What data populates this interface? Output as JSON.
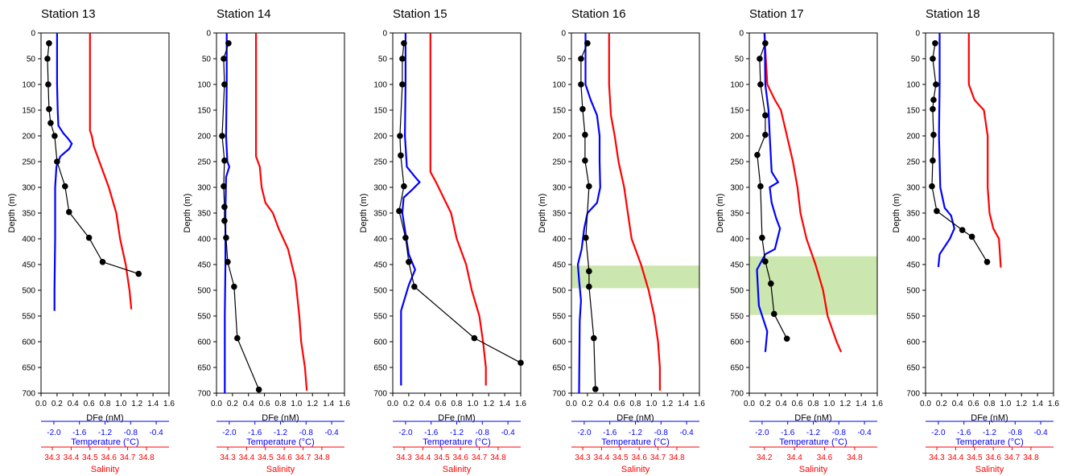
{
  "colors": {
    "dfe": "#000000",
    "temperature": "#0000ff",
    "salinity": "#ff0000",
    "highlight": "#c2e2a0",
    "axis": "#000000"
  },
  "axis_labels": {
    "y": "Depth (m)",
    "x_dfe": "DFe (nM)",
    "x_temperature": "Temperature (°C)",
    "x_salinity": "Salinity"
  },
  "chart_data": [
    {
      "title": "Station 13",
      "type": "line",
      "ylim": [
        0,
        700
      ],
      "yticks": [
        0,
        50,
        100,
        150,
        200,
        250,
        300,
        350,
        400,
        450,
        500,
        550,
        600,
        650,
        700
      ],
      "dfe_xlim": [
        0,
        1.6
      ],
      "dfe_ticks": [
        "0.0",
        "0.2",
        "0.4",
        "0.6",
        "0.8",
        "1.0",
        "1.2",
        "1.4",
        "1.6"
      ],
      "temp_xlim": [
        -2.2,
        -0.2
      ],
      "temp_ticks": [
        "-2.0",
        "-1.6",
        "-1.2",
        "-0.8",
        "-0.4"
      ],
      "sal_xlim": [
        34.24,
        34.92
      ],
      "sal_ticks": [
        "34.3",
        "34.4",
        "34.5",
        "34.6",
        "34.7",
        "34.8"
      ],
      "highlight": null,
      "dfe": [
        [
          0.1,
          20
        ],
        [
          0.08,
          50
        ],
        [
          0.09,
          100
        ],
        [
          0.1,
          148
        ],
        [
          0.12,
          175
        ],
        [
          0.17,
          200
        ],
        [
          0.2,
          250
        ],
        [
          0.3,
          298
        ],
        [
          0.35,
          348
        ],
        [
          0.6,
          398
        ],
        [
          0.77,
          445
        ],
        [
          1.22,
          468
        ]
      ],
      "temperature": [
        [
          -1.95,
          0
        ],
        [
          -1.95,
          50
        ],
        [
          -1.95,
          100
        ],
        [
          -1.94,
          150
        ],
        [
          -1.93,
          180
        ],
        [
          -1.85,
          195
        ],
        [
          -1.78,
          205
        ],
        [
          -1.72,
          215
        ],
        [
          -1.76,
          225
        ],
        [
          -1.9,
          240
        ],
        [
          -1.96,
          260
        ],
        [
          -1.98,
          300
        ],
        [
          -1.98,
          400
        ],
        [
          -1.99,
          500
        ],
        [
          -1.99,
          540
        ]
      ],
      "salinity": [
        [
          34.5,
          0
        ],
        [
          34.5,
          100
        ],
        [
          34.5,
          150
        ],
        [
          34.5,
          190
        ],
        [
          34.51,
          200
        ],
        [
          34.52,
          220
        ],
        [
          34.55,
          250
        ],
        [
          34.6,
          300
        ],
        [
          34.64,
          350
        ],
        [
          34.66,
          400
        ],
        [
          34.69,
          450
        ],
        [
          34.71,
          500
        ],
        [
          34.72,
          537
        ]
      ]
    },
    {
      "title": "Station 14",
      "type": "line",
      "ylim": [
        0,
        700
      ],
      "yticks": [
        0,
        50,
        100,
        150,
        200,
        250,
        300,
        350,
        400,
        450,
        500,
        550,
        600,
        650,
        700
      ],
      "dfe_xlim": [
        0,
        1.6
      ],
      "dfe_ticks": [
        "0.0",
        "0.2",
        "0.4",
        "0.6",
        "0.8",
        "1.0",
        "1.2",
        "1.4",
        "1.6"
      ],
      "temp_xlim": [
        -2.2,
        -0.2
      ],
      "temp_ticks": [
        "-2.0",
        "-1.6",
        "-1.2",
        "-0.8",
        "-0.4"
      ],
      "sal_xlim": [
        34.24,
        34.92
      ],
      "sal_ticks": [
        "34.3",
        "34.4",
        "34.5",
        "34.6",
        "34.7",
        "34.8"
      ],
      "highlight": null,
      "dfe": [
        [
          0.15,
          20
        ],
        [
          0.09,
          50
        ],
        [
          0.1,
          100
        ],
        [
          0.07,
          200
        ],
        [
          0.1,
          248
        ],
        [
          0.09,
          298
        ],
        [
          0.1,
          338
        ],
        [
          0.1,
          365
        ],
        [
          0.12,
          398
        ],
        [
          0.14,
          445
        ],
        [
          0.22,
          493
        ],
        [
          0.26,
          593
        ],
        [
          0.53,
          693
        ]
      ],
      "temperature": [
        [
          -2.04,
          0
        ],
        [
          -2.04,
          100
        ],
        [
          -2.05,
          200
        ],
        [
          -2.03,
          250
        ],
        [
          -2.0,
          260
        ],
        [
          -2.05,
          280
        ],
        [
          -2.06,
          350
        ],
        [
          -2.06,
          450
        ],
        [
          -2.07,
          550
        ],
        [
          -2.07,
          700
        ]
      ],
      "salinity": [
        [
          34.45,
          0
        ],
        [
          34.45,
          100
        ],
        [
          34.45,
          200
        ],
        [
          34.45,
          240
        ],
        [
          34.47,
          260
        ],
        [
          34.48,
          300
        ],
        [
          34.5,
          330
        ],
        [
          34.54,
          350
        ],
        [
          34.57,
          380
        ],
        [
          34.62,
          420
        ],
        [
          34.66,
          480
        ],
        [
          34.68,
          550
        ],
        [
          34.69,
          600
        ],
        [
          34.71,
          650
        ],
        [
          34.72,
          695
        ]
      ]
    },
    {
      "title": "Station 15",
      "type": "line",
      "ylim": [
        0,
        700
      ],
      "yticks": [
        0,
        50,
        100,
        150,
        200,
        250,
        300,
        350,
        400,
        450,
        500,
        550,
        600,
        650,
        700
      ],
      "dfe_xlim": [
        0,
        1.6
      ],
      "dfe_ticks": [
        "0.0",
        "0.2",
        "0.4",
        "0.6",
        "0.8",
        "1.0",
        "1.2",
        "1.4",
        "1.6"
      ],
      "temp_xlim": [
        -2.2,
        -0.2
      ],
      "temp_ticks": [
        "-2.0",
        "-1.6",
        "-1.2",
        "-0.8",
        "-0.4"
      ],
      "sal_xlim": [
        34.24,
        34.92
      ],
      "sal_ticks": [
        "34.3",
        "34.4",
        "34.5",
        "34.6",
        "34.7",
        "34.8"
      ],
      "highlight": null,
      "dfe": [
        [
          0.14,
          20
        ],
        [
          0.12,
          50
        ],
        [
          0.12,
          100
        ],
        [
          0.09,
          200
        ],
        [
          0.1,
          238
        ],
        [
          0.14,
          298
        ],
        [
          0.08,
          346
        ],
        [
          0.16,
          398
        ],
        [
          0.2,
          445
        ],
        [
          0.27,
          493
        ],
        [
          1.02,
          593
        ],
        [
          1.6,
          641
        ]
      ],
      "temperature": [
        [
          -2.0,
          0
        ],
        [
          -2.0,
          100
        ],
        [
          -2.01,
          200
        ],
        [
          -1.98,
          260
        ],
        [
          -1.85,
          280
        ],
        [
          -1.78,
          290
        ],
        [
          -1.9,
          305
        ],
        [
          -2.03,
          320
        ],
        [
          -2.05,
          350
        ],
        [
          -1.95,
          430
        ],
        [
          -1.85,
          460
        ],
        [
          -1.95,
          490
        ],
        [
          -2.07,
          540
        ],
        [
          -2.07,
          600
        ],
        [
          -2.07,
          685
        ]
      ],
      "salinity": [
        [
          34.44,
          0
        ],
        [
          34.44,
          100
        ],
        [
          34.44,
          200
        ],
        [
          34.44,
          270
        ],
        [
          34.47,
          290
        ],
        [
          34.51,
          320
        ],
        [
          34.55,
          350
        ],
        [
          34.58,
          400
        ],
        [
          34.63,
          450
        ],
        [
          34.66,
          500
        ],
        [
          34.7,
          550
        ],
        [
          34.72,
          600
        ],
        [
          34.735,
          650
        ],
        [
          34.735,
          685
        ]
      ]
    },
    {
      "title": "Station 16",
      "type": "line",
      "ylim": [
        0,
        700
      ],
      "yticks": [
        0,
        50,
        100,
        150,
        200,
        250,
        300,
        350,
        400,
        450,
        500,
        550,
        600,
        650,
        700
      ],
      "dfe_xlim": [
        0,
        1.6
      ],
      "dfe_ticks": [
        "0.0",
        "0.2",
        "0.4",
        "0.6",
        "0.8",
        "1.0",
        "1.2",
        "1.4",
        "1.6"
      ],
      "temp_xlim": [
        -2.2,
        -0.2
      ],
      "temp_ticks": [
        "-2.0",
        "-1.6",
        "-1.2",
        "-0.8",
        "-0.4"
      ],
      "sal_xlim": [
        34.24,
        34.92
      ],
      "sal_ticks": [
        "34.3",
        "34.4",
        "34.5",
        "34.6",
        "34.7",
        "34.8"
      ],
      "highlight": [
        452,
        496
      ],
      "dfe": [
        [
          0.2,
          20
        ],
        [
          0.12,
          50
        ],
        [
          0.12,
          100
        ],
        [
          0.14,
          148
        ],
        [
          0.17,
          198
        ],
        [
          0.17,
          248
        ],
        [
          0.22,
          298
        ],
        [
          0.18,
          398
        ],
        [
          0.22,
          463
        ],
        [
          0.22,
          493
        ],
        [
          0.28,
          593
        ],
        [
          0.3,
          692
        ]
      ],
      "temperature": [
        [
          -1.98,
          0
        ],
        [
          -1.98,
          100
        ],
        [
          -1.9,
          130
        ],
        [
          -1.8,
          160
        ],
        [
          -1.76,
          200
        ],
        [
          -1.76,
          250
        ],
        [
          -1.75,
          300
        ],
        [
          -1.8,
          330
        ],
        [
          -1.95,
          350
        ],
        [
          -2.0,
          380
        ],
        [
          -2.04,
          420
        ],
        [
          -2.1,
          450
        ],
        [
          -2.08,
          480
        ],
        [
          -2.05,
          520
        ],
        [
          -2.07,
          560
        ],
        [
          -2.08,
          700
        ]
      ],
      "salinity": [
        [
          34.44,
          0
        ],
        [
          34.44,
          100
        ],
        [
          34.45,
          160
        ],
        [
          34.47,
          200
        ],
        [
          34.49,
          250
        ],
        [
          34.52,
          300
        ],
        [
          34.54,
          350
        ],
        [
          34.56,
          400
        ],
        [
          34.61,
          450
        ],
        [
          34.65,
          500
        ],
        [
          34.68,
          550
        ],
        [
          34.7,
          600
        ],
        [
          34.71,
          650
        ],
        [
          34.71,
          695
        ]
      ]
    },
    {
      "title": "Station 17",
      "type": "line",
      "ylim": [
        0,
        700
      ],
      "yticks": [
        0,
        50,
        100,
        150,
        200,
        250,
        300,
        350,
        400,
        450,
        500,
        550,
        600,
        650,
        700
      ],
      "dfe_xlim": [
        0,
        1.6
      ],
      "dfe_ticks": [
        "0.0",
        "0.2",
        "0.4",
        "0.6",
        "0.8",
        "1.0",
        "1.2",
        "1.4",
        "1.6"
      ],
      "temp_xlim": [
        -2.2,
        -0.2
      ],
      "temp_ticks": [
        "-2.0",
        "-1.6",
        "-1.2",
        "-0.8",
        "-0.4"
      ],
      "sal_xlim": [
        34.1,
        34.95
      ],
      "sal_ticks": [
        "34.2",
        "34.4",
        "34.6",
        "34.8"
      ],
      "highlight": [
        434,
        548
      ],
      "dfe": [
        [
          0.2,
          20
        ],
        [
          0.13,
          50
        ],
        [
          0.14,
          100
        ],
        [
          0.2,
          160
        ],
        [
          0.2,
          198
        ],
        [
          0.1,
          237
        ],
        [
          0.14,
          298
        ],
        [
          0.16,
          398
        ],
        [
          0.2,
          444
        ],
        [
          0.27,
          487
        ],
        [
          0.31,
          546
        ],
        [
          0.47,
          594
        ]
      ],
      "temperature": [
        [
          -1.96,
          0
        ],
        [
          -1.95,
          100
        ],
        [
          -1.9,
          150
        ],
        [
          -1.88,
          200
        ],
        [
          -1.85,
          270
        ],
        [
          -1.75,
          290
        ],
        [
          -1.88,
          300
        ],
        [
          -1.85,
          330
        ],
        [
          -1.78,
          360
        ],
        [
          -1.72,
          380
        ],
        [
          -1.8,
          420
        ],
        [
          -1.95,
          430
        ],
        [
          -2.08,
          460
        ],
        [
          -2.05,
          530
        ],
        [
          -1.92,
          580
        ],
        [
          -1.95,
          620
        ]
      ],
      "salinity": [
        [
          34.2,
          0
        ],
        [
          34.22,
          100
        ],
        [
          34.27,
          130
        ],
        [
          34.31,
          150
        ],
        [
          34.35,
          200
        ],
        [
          34.39,
          250
        ],
        [
          34.42,
          300
        ],
        [
          34.44,
          350
        ],
        [
          34.48,
          400
        ],
        [
          34.54,
          450
        ],
        [
          34.59,
          500
        ],
        [
          34.62,
          550
        ],
        [
          34.68,
          600
        ],
        [
          34.71,
          620
        ]
      ]
    },
    {
      "title": "Station 18",
      "type": "line",
      "ylim": [
        0,
        700
      ],
      "yticks": [
        0,
        50,
        100,
        150,
        200,
        250,
        300,
        350,
        400,
        450,
        500,
        550,
        600,
        650,
        700
      ],
      "dfe_xlim": [
        0,
        1.6
      ],
      "dfe_ticks": [
        "0.0",
        "0.2",
        "0.4",
        "0.6",
        "0.8",
        "1.0",
        "1.2",
        "1.4",
        "1.6"
      ],
      "temp_xlim": [
        -2.2,
        -0.2
      ],
      "temp_ticks": [
        "-2.0",
        "-1.6",
        "-1.2",
        "-0.8",
        "-0.4"
      ],
      "sal_xlim": [
        34.24,
        34.92
      ],
      "sal_ticks": [
        "34.3",
        "34.4",
        "34.5",
        "34.6",
        "34.7",
        "34.8"
      ],
      "highlight": null,
      "dfe": [
        [
          0.12,
          20
        ],
        [
          0.09,
          50
        ],
        [
          0.13,
          100
        ],
        [
          0.1,
          130
        ],
        [
          0.09,
          148
        ],
        [
          0.1,
          198
        ],
        [
          0.09,
          248
        ],
        [
          0.08,
          298
        ],
        [
          0.14,
          346
        ],
        [
          0.46,
          383
        ],
        [
          0.58,
          396
        ],
        [
          0.77,
          445
        ]
      ],
      "temperature": [
        [
          -1.98,
          0
        ],
        [
          -1.98,
          100
        ],
        [
          -1.99,
          200
        ],
        [
          -1.97,
          300
        ],
        [
          -1.9,
          340
        ],
        [
          -1.8,
          355
        ],
        [
          -1.75,
          380
        ],
        [
          -1.82,
          400
        ],
        [
          -1.98,
          430
        ],
        [
          -2.0,
          455
        ]
      ],
      "salinity": [
        [
          34.47,
          0
        ],
        [
          34.47,
          100
        ],
        [
          34.5,
          130
        ],
        [
          34.55,
          150
        ],
        [
          34.57,
          200
        ],
        [
          34.57,
          300
        ],
        [
          34.58,
          350
        ],
        [
          34.6,
          380
        ],
        [
          34.63,
          400
        ],
        [
          34.64,
          456
        ]
      ]
    }
  ]
}
